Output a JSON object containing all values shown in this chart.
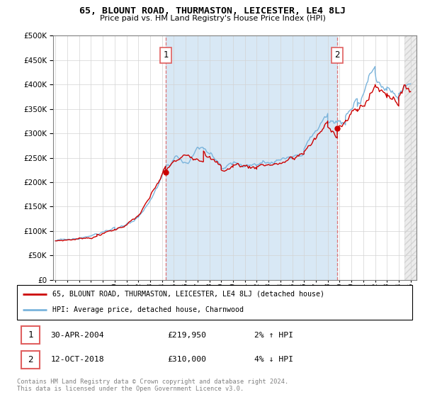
{
  "title": "65, BLOUNT ROAD, THURMASTON, LEICESTER, LE4 8LJ",
  "subtitle": "Price paid vs. HM Land Registry's House Price Index (HPI)",
  "legend_line1": "65, BLOUNT ROAD, THURMASTON, LEICESTER, LE4 8LJ (detached house)",
  "legend_line2": "HPI: Average price, detached house, Charnwood",
  "annotation1_label": "1",
  "annotation1_date": "30-APR-2004",
  "annotation1_price": "£219,950",
  "annotation1_hpi": "2% ↑ HPI",
  "annotation2_label": "2",
  "annotation2_date": "12-OCT-2018",
  "annotation2_price": "£310,000",
  "annotation2_hpi": "4% ↓ HPI",
  "footnote": "Contains HM Land Registry data © Crown copyright and database right 2024.\nThis data is licensed under the Open Government Licence v3.0.",
  "hpi_color": "#7ab4dc",
  "price_color": "#cc0000",
  "dashed_color": "#e06060",
  "fill_color": "#d8e8f5",
  "ylim": [
    0,
    500000
  ],
  "yticks": [
    0,
    50000,
    100000,
    150000,
    200000,
    250000,
    300000,
    350000,
    400000,
    450000,
    500000
  ],
  "sale1_x": 2004.33,
  "sale1_y": 219950,
  "sale2_x": 2018.79,
  "sale2_y": 310000,
  "xlim_start": 1994.8,
  "xlim_end": 2025.5,
  "hatch_start": 2024.5
}
